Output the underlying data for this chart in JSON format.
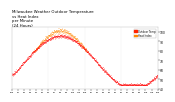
{
  "title": "Milwaukee Weather Outdoor Temperature\nvs Heat Index\nper Minute\n(24 Hours)",
  "title_fontsize": 2.8,
  "title_color": "#000000",
  "bg_color": "#ffffff",
  "plot_bg_color": "#ffffff",
  "dot_color_outdoor": "#ff0000",
  "dot_color_heatindex": "#ff8800",
  "dot_size": 0.08,
  "ylim": [
    40,
    105
  ],
  "xlim": [
    0,
    1440
  ],
  "yticks": [
    40,
    50,
    60,
    70,
    80,
    90,
    100
  ],
  "legend_outdoor_color": "#ff2200",
  "legend_heatindex_color": "#ff8800",
  "legend_label_outdoor": "Outdoor Temp",
  "legend_label_heatindex": "Heat Index",
  "vlines": [
    360,
    720,
    1080
  ],
  "vline_color": "#cccccc",
  "vline_style": ":"
}
